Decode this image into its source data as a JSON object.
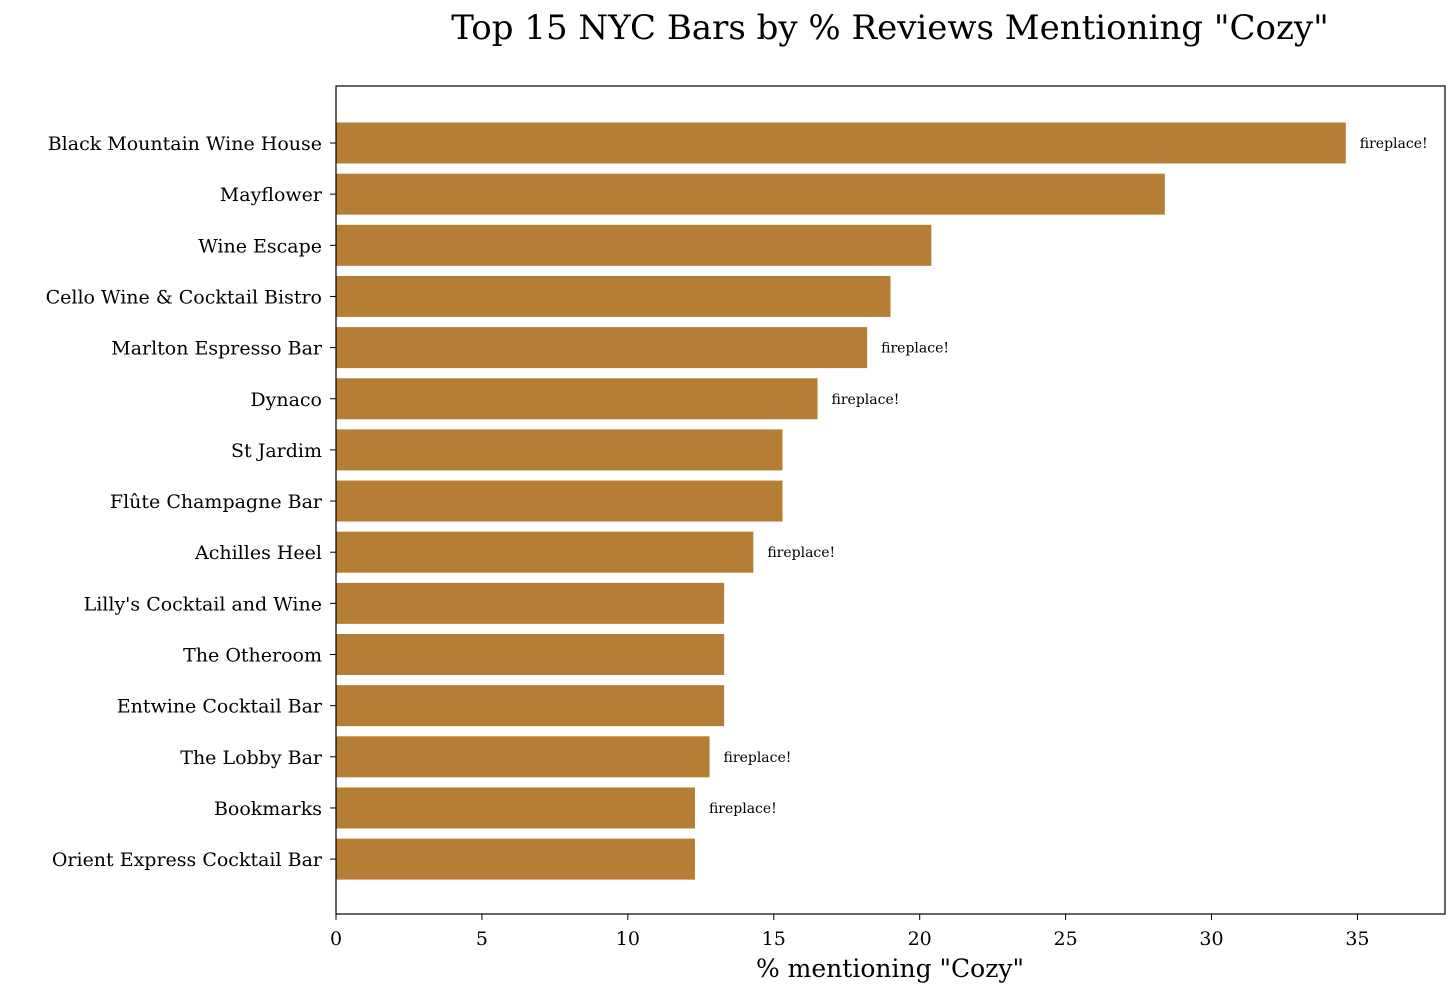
{
  "chart_data": {
    "type": "bar",
    "orientation": "horizontal",
    "title": "Top 15 NYC Bars by % Reviews Mentioning \"Cozy\"",
    "xlabel": "% mentioning \"Cozy\"",
    "ylabel": "",
    "xlim": [
      0,
      38
    ],
    "xticks": [
      0,
      5,
      10,
      15,
      20,
      25,
      30,
      35
    ],
    "grid": false,
    "bar_color": "#b67d34",
    "categories": [
      "Black Mountain Wine House",
      "Mayflower",
      "Wine Escape",
      "Cello Wine & Cocktail Bistro",
      "Marlton Espresso Bar",
      "Dynaco",
      "St Jardim",
      "Flûte Champagne Bar",
      "Achilles Heel",
      "Lilly's Cocktail and Wine",
      "The Otheroom",
      "Entwine Cocktail Bar",
      "The Lobby Bar",
      "Bookmarks",
      "Orient Express Cocktail Bar"
    ],
    "values": [
      34.6,
      28.4,
      20.4,
      19.0,
      18.2,
      16.5,
      15.3,
      15.3,
      14.3,
      13.3,
      13.3,
      13.3,
      12.8,
      12.3,
      12.3
    ],
    "annotations": [
      "fireplace!",
      "",
      "",
      "",
      "fireplace!",
      "fireplace!",
      "",
      "",
      "fireplace!",
      "",
      "",
      "",
      "fireplace!",
      "fireplace!",
      ""
    ]
  }
}
